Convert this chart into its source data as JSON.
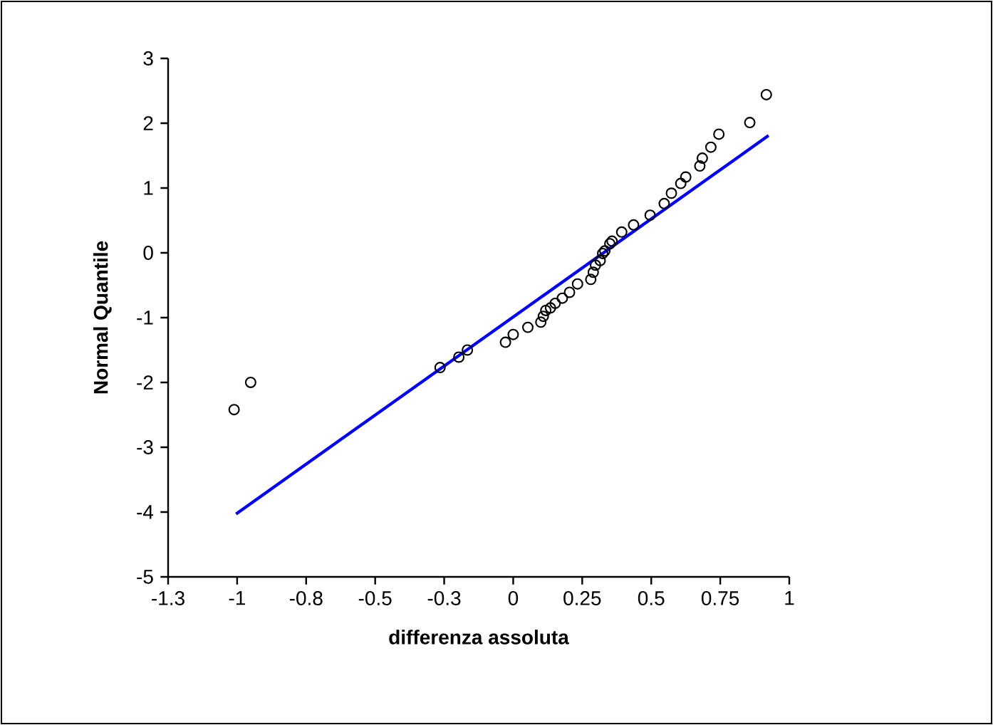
{
  "chart_data": {
    "type": "scatter",
    "xlabel": "differenza assoluta",
    "ylabel": "Normal Quantile",
    "xlim": [
      -1.25,
      1
    ],
    "ylim": [
      -5,
      3
    ],
    "xticks": [
      {
        "value": -1.25,
        "label": "-1.3"
      },
      -1,
      {
        "value": -0.75,
        "label": "-0.8"
      },
      -0.5,
      {
        "value": -0.25,
        "label": "-0.3"
      },
      0,
      0.25,
      0.5,
      0.75,
      1
    ],
    "yticks": [
      -5,
      -4,
      -3,
      -2,
      -1,
      0,
      1,
      2,
      3
    ],
    "series": [
      {
        "marker": "circle",
        "color": "#000000",
        "x": [
          -1.011,
          -0.951,
          -0.265,
          -0.197,
          -0.166,
          -0.028,
          0.0,
          0.053,
          0.1,
          0.109,
          0.118,
          0.135,
          0.152,
          0.178,
          0.204,
          0.233,
          0.281,
          0.29,
          0.298,
          0.315,
          0.324,
          0.332,
          0.35,
          0.358,
          0.393,
          0.436,
          0.496,
          0.547,
          0.573,
          0.607,
          0.625,
          0.676,
          0.685,
          0.716,
          0.745,
          0.857,
          0.917
        ],
        "values": [
          -2.42,
          -2.0,
          -1.77,
          -1.61,
          -1.5,
          -1.38,
          -1.26,
          -1.15,
          -1.07,
          -0.98,
          -0.89,
          -0.85,
          -0.78,
          -0.7,
          -0.61,
          -0.48,
          -0.41,
          -0.3,
          -0.19,
          -0.12,
          -0.01,
          0.03,
          0.14,
          0.18,
          0.32,
          0.43,
          0.58,
          0.76,
          0.92,
          1.07,
          1.17,
          1.34,
          1.46,
          1.63,
          1.83,
          2.01,
          2.44
        ]
      },
      {
        "type": "line",
        "marker": "none",
        "line_style": "solid",
        "color": "#0000ff",
        "x": [
          -1.004,
          0.925
        ],
        "values": [
          -4.03,
          1.81
        ]
      }
    ]
  }
}
